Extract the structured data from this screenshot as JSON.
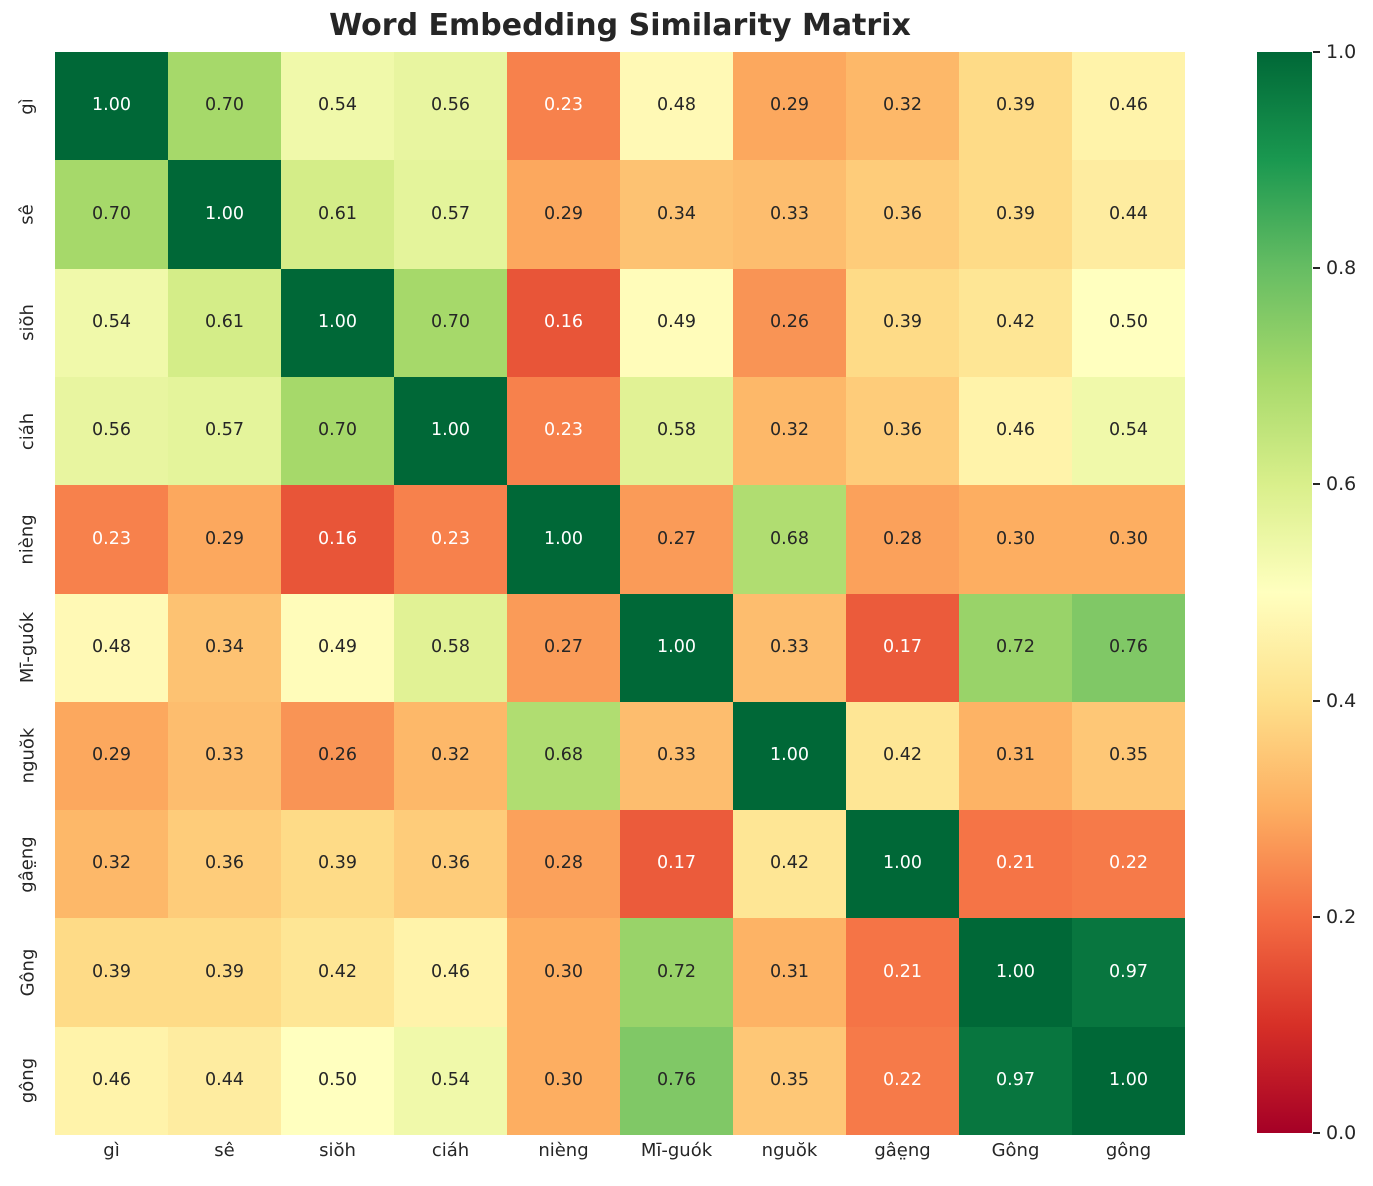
{
  "title": "Word Embedding Similarity Matrix",
  "colors": {
    "background": "#ffffff",
    "title_text": "#262626",
    "tick_text": "#262626",
    "annot_dark": "#262626",
    "annot_light": "#ffffff",
    "colormap_stops": [
      "#a50026",
      "#d73027",
      "#f46d43",
      "#fdae61",
      "#fee08b",
      "#ffffbf",
      "#d9ef8b",
      "#a6d96a",
      "#66bd63",
      "#1a9850",
      "#006837"
    ]
  },
  "chart_data": {
    "type": "heatmap",
    "title": "Word Embedding Similarity Matrix",
    "colormap": "RdYlGn",
    "vmin": 0.0,
    "vmax": 1.0,
    "x_labels": [
      "gì",
      "sê",
      "siŏh",
      "ciáh",
      "nièng",
      "Mī-guók",
      "nguŏk",
      "gâe̤ng",
      "Gông",
      "gông"
    ],
    "y_labels": [
      "gì",
      "sê",
      "siŏh",
      "ciáh",
      "nièng",
      "Mī-guók",
      "nguŏk",
      "gâe̤ng",
      "Gông",
      "gông"
    ],
    "matrix": [
      [
        1.0,
        0.7,
        0.54,
        0.56,
        0.23,
        0.48,
        0.29,
        0.32,
        0.39,
        0.46
      ],
      [
        0.7,
        1.0,
        0.61,
        0.57,
        0.29,
        0.34,
        0.33,
        0.36,
        0.39,
        0.44
      ],
      [
        0.54,
        0.61,
        1.0,
        0.7,
        0.16,
        0.49,
        0.26,
        0.39,
        0.42,
        0.5
      ],
      [
        0.56,
        0.57,
        0.7,
        1.0,
        0.23,
        0.58,
        0.32,
        0.36,
        0.46,
        0.54
      ],
      [
        0.23,
        0.29,
        0.16,
        0.23,
        1.0,
        0.27,
        0.68,
        0.28,
        0.3,
        0.3
      ],
      [
        0.48,
        0.34,
        0.49,
        0.58,
        0.27,
        1.0,
        0.33,
        0.17,
        0.72,
        0.76
      ],
      [
        0.29,
        0.33,
        0.26,
        0.32,
        0.68,
        0.33,
        1.0,
        0.42,
        0.31,
        0.35
      ],
      [
        0.32,
        0.36,
        0.39,
        0.36,
        0.28,
        0.17,
        0.42,
        1.0,
        0.21,
        0.22
      ],
      [
        0.39,
        0.39,
        0.42,
        0.46,
        0.3,
        0.72,
        0.31,
        0.21,
        1.0,
        0.97
      ],
      [
        0.46,
        0.44,
        0.5,
        0.54,
        0.3,
        0.76,
        0.35,
        0.22,
        0.97,
        1.0
      ]
    ],
    "value_decimals": 2,
    "colorbar_ticks": [
      "1.0",
      "0.8",
      "0.6",
      "0.4",
      "0.2",
      "0.0"
    ],
    "legend_position": "right"
  }
}
